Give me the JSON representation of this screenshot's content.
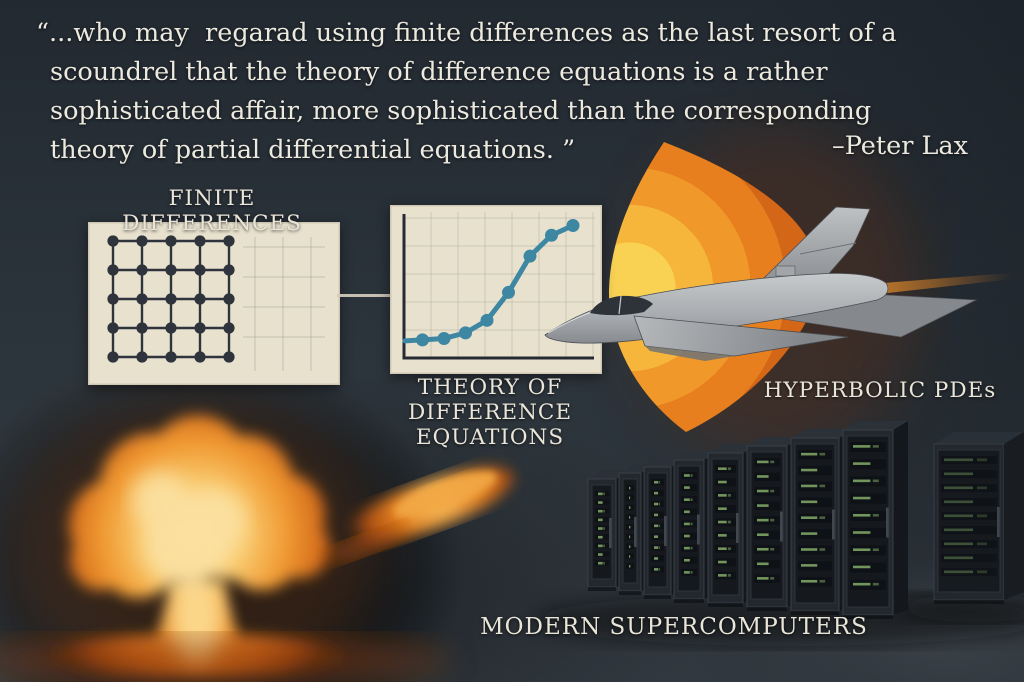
{
  "quote": {
    "lines": [
      "“...who may  regarad using finite differences as the last resort of a",
      "scoundrel that the theory of difference equations is a rather",
      "sophisticated affair, more sophisticated than the corresponding",
      "theory of partial differential equations. ”"
    ],
    "attribution": "–Peter Lax"
  },
  "labels": {
    "finite_differences": "FINITE DIFFERENCES",
    "theory_of_difference_equations": [
      "THEORY OF",
      "DIFFERENCE EQUATIONS"
    ],
    "hyperbolic_pdes": "HYPERBOLIC PDEs",
    "modern_supercomputers": "MODERN SUPERCOMPUTERS"
  },
  "panels": {
    "finite_differences_grid": {
      "rows": 5,
      "cols": 5,
      "dot_color": "#2e333c",
      "panel_color": "#e8e1ce",
      "ghost_grid_color": "#a9a294"
    }
  },
  "chart_data": {
    "type": "line",
    "x": [
      1,
      2,
      3,
      4,
      5,
      6,
      7,
      8
    ],
    "values": [
      1.3,
      1.4,
      1.8,
      2.7,
      4.7,
      7.3,
      8.8,
      9.5
    ],
    "title": "THEORY OF DIFFERENCE EQUATIONS",
    "xlabel": "",
    "ylabel": "",
    "ylim": [
      0,
      10
    ],
    "grid": true,
    "legend": "none",
    "line_color": "#3e87a3",
    "axis_color": "#262b33",
    "starts_at_axis": true
  },
  "illustrations": {
    "shockwave": "concentric-orange-shockwave-fan",
    "jet": "supersonic-fighter-jet",
    "explosion": "nuclear-mushroom-cloud",
    "flame": "detached-flame-wisp",
    "servers": "row-of-dark-server-racks-with-green-leds"
  },
  "colors": {
    "background": "#2a323a",
    "panel": "#e8e1ce",
    "text": "#ece9df",
    "teal": "#3e87a3",
    "shockwave_yellow": "#f9d254",
    "shockwave_orange": "#e77f1f",
    "explosion_core": "#fdeec4",
    "rack_led_green": "#7da465"
  }
}
